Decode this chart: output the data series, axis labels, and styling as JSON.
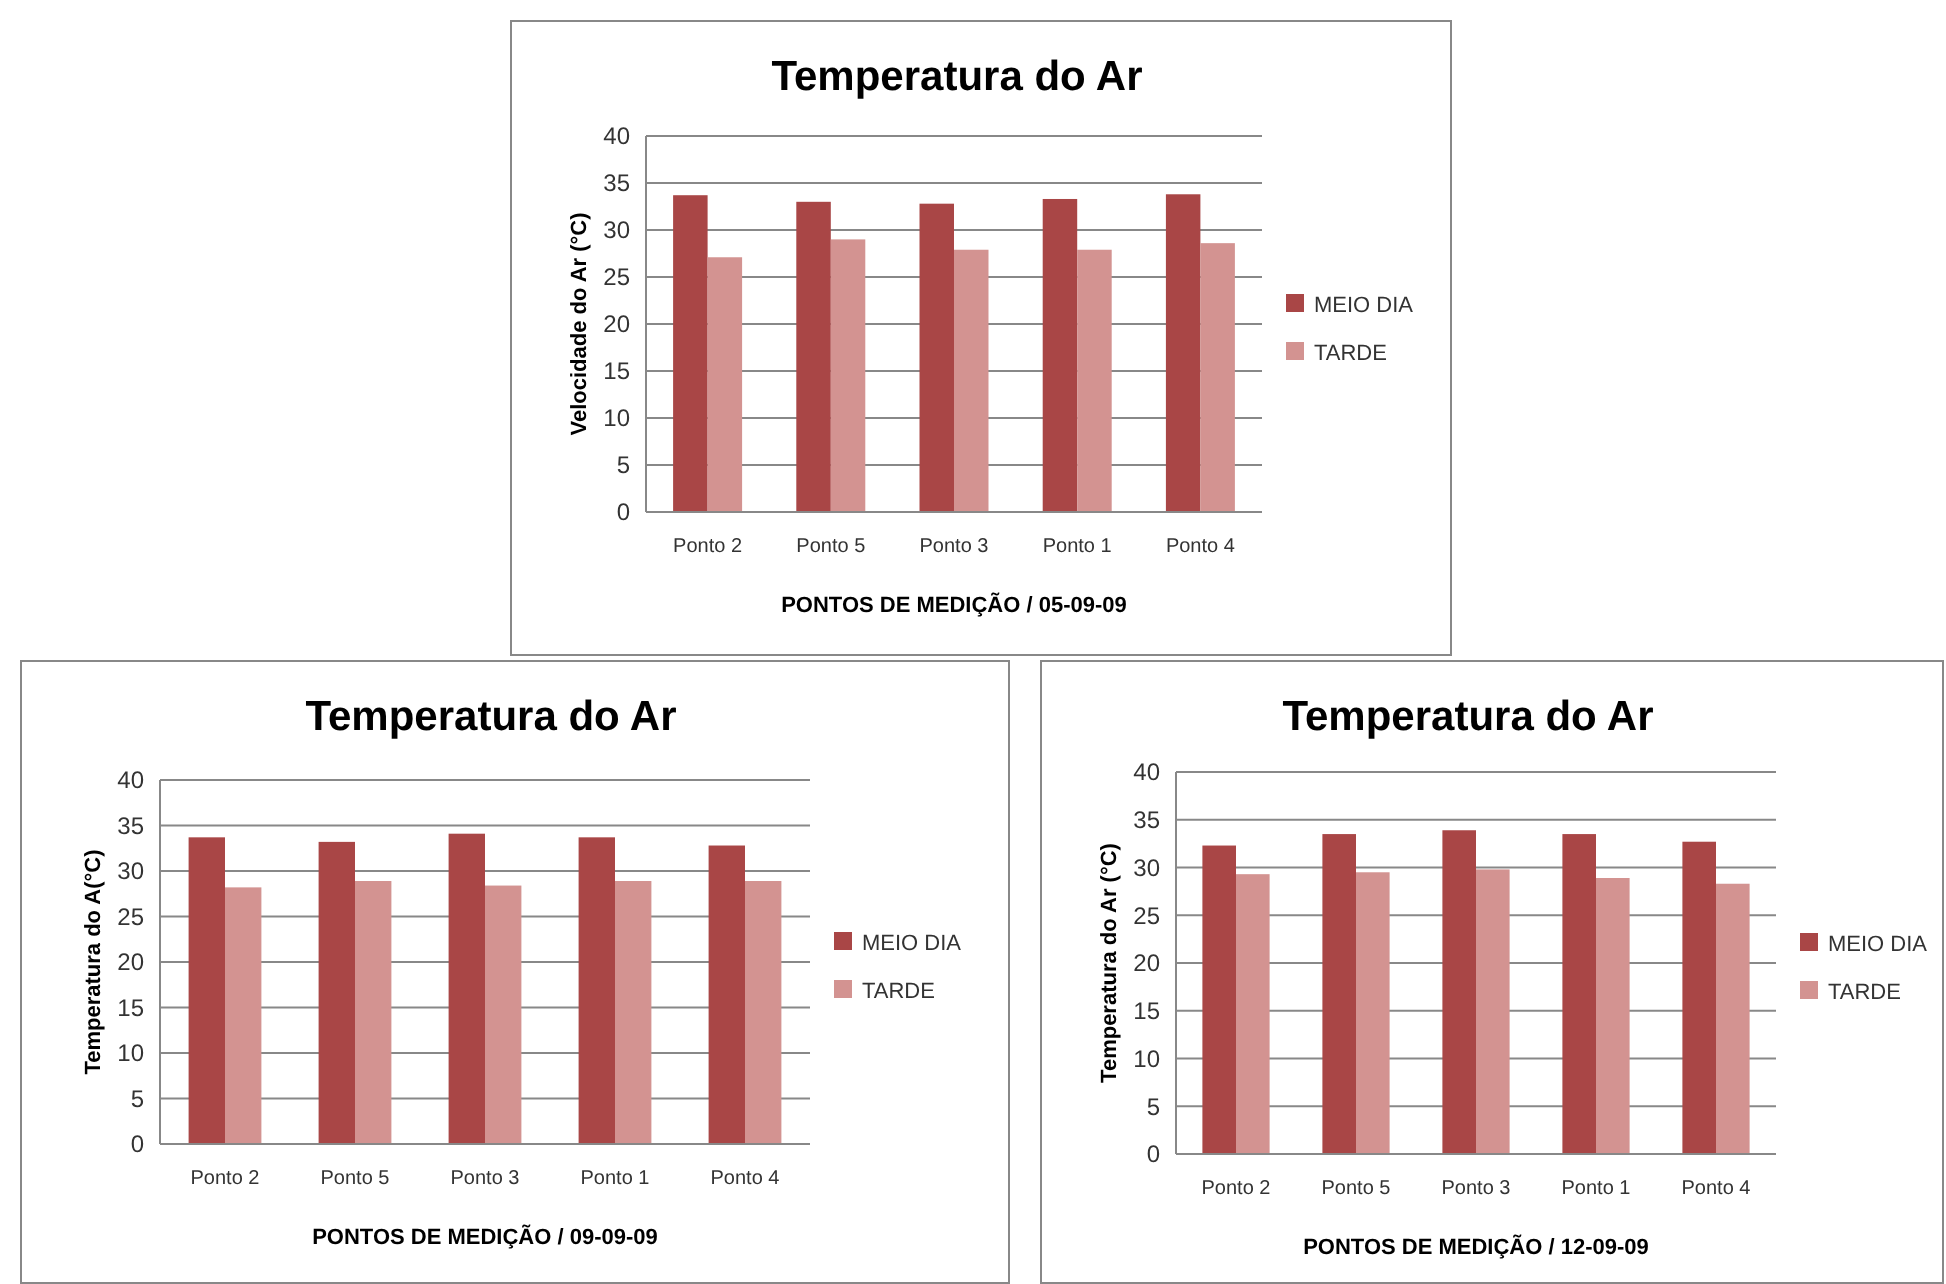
{
  "chart_data": [
    {
      "type": "bar",
      "title": "Temperatura do Ar",
      "xlabel": "PONTOS DE MEDIÇÃO / 05-09-09",
      "ylabel": "Velocidade do Ar (°C)",
      "categories": [
        "Ponto 2",
        "Ponto 5",
        "Ponto 3",
        "Ponto 1",
        "Ponto 4"
      ],
      "ylim": [
        0,
        40
      ],
      "yticks": [
        0,
        5,
        10,
        15,
        20,
        25,
        30,
        35,
        40
      ],
      "grid": "y",
      "legend": "right",
      "series": [
        {
          "name": "MEIO DIA",
          "color": "#a94646",
          "values": [
            33.7,
            33.0,
            32.8,
            33.3,
            33.8
          ]
        },
        {
          "name": "TARDE",
          "color": "#d39391",
          "values": [
            27.1,
            29.0,
            27.9,
            27.9,
            28.6
          ]
        }
      ]
    },
    {
      "type": "bar",
      "title": "Temperatura do Ar",
      "xlabel": "PONTOS DE MEDIÇÃO / 09-09-09",
      "ylabel": "Temperatura do A(°C)",
      "categories": [
        "Ponto 2",
        "Ponto 5",
        "Ponto 3",
        "Ponto 1",
        "Ponto 4"
      ],
      "ylim": [
        0,
        40
      ],
      "yticks": [
        0,
        5,
        10,
        15,
        20,
        25,
        30,
        35,
        40
      ],
      "grid": "y",
      "legend": "right",
      "series": [
        {
          "name": "MEIO DIA",
          "color": "#a94646",
          "values": [
            33.7,
            33.2,
            34.1,
            33.7,
            32.8
          ]
        },
        {
          "name": "TARDE",
          "color": "#d39391",
          "values": [
            28.2,
            28.9,
            28.4,
            28.9,
            28.9
          ]
        }
      ]
    },
    {
      "type": "bar",
      "title": "Temperatura do Ar",
      "xlabel": "PONTOS DE MEDIÇÃO / 12-09-09",
      "ylabel": "Temperatura do Ar (°C)",
      "categories": [
        "Ponto 2",
        "Ponto 5",
        "Ponto 3",
        "Ponto 1",
        "Ponto 4"
      ],
      "ylim": [
        0,
        40
      ],
      "yticks": [
        0,
        5,
        10,
        15,
        20,
        25,
        30,
        35,
        40
      ],
      "grid": "y",
      "legend": "right",
      "series": [
        {
          "name": "MEIO DIA",
          "color": "#a94646",
          "values": [
            32.3,
            33.5,
            33.9,
            33.5,
            32.7
          ]
        },
        {
          "name": "TARDE",
          "color": "#d39391",
          "values": [
            29.3,
            29.5,
            29.8,
            28.9,
            28.3
          ]
        }
      ]
    }
  ]
}
